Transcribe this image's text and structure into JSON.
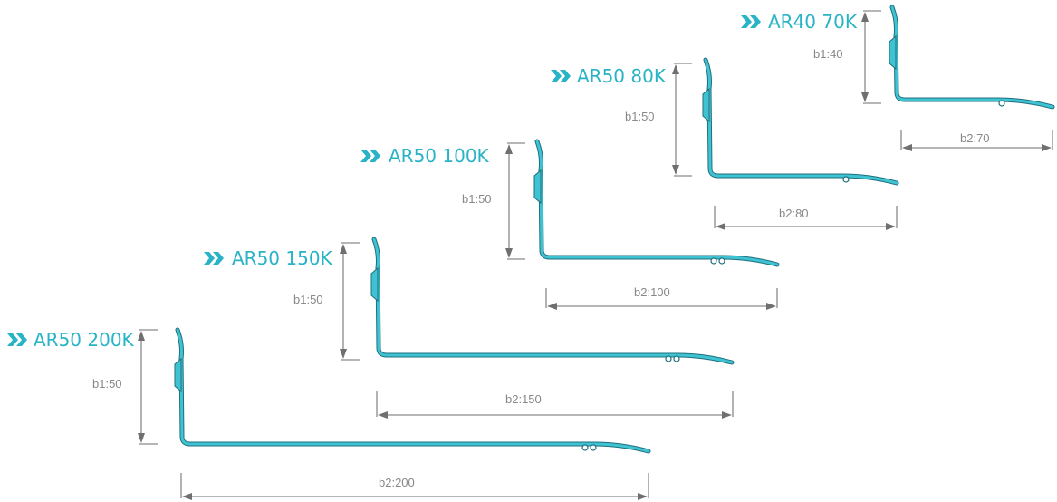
{
  "profiles": [
    {
      "id": "ar50-200k",
      "title": "AR50 200K",
      "b1_label": "b1:50",
      "b2_label": "b2:200",
      "b1": 50,
      "b2": 200
    },
    {
      "id": "ar50-150k",
      "title": "AR50 150K",
      "b1_label": "b1:50",
      "b2_label": "b2:150",
      "b1": 50,
      "b2": 150
    },
    {
      "id": "ar50-100k",
      "title": "AR50 100K",
      "b1_label": "b1:50",
      "b2_label": "b2:100",
      "b1": 50,
      "b2": 100
    },
    {
      "id": "ar50-80k",
      "title": "AR50 80K",
      "b1_label": "b1:50",
      "b2_label": "b2:80",
      "b1": 50,
      "b2": 80
    },
    {
      "id": "ar40-70k",
      "title": "AR40 70K",
      "b1_label": "b1:40",
      "b2_label": "b2:70",
      "b1": 40,
      "b2": 70
    }
  ],
  "colors": {
    "accent": "#29b3c6",
    "profile_fill": "#3fc3d3",
    "profile_edge": "#1f6f7d",
    "dimension": "#888888"
  },
  "icons": {
    "title_marker": "double-chevron-right-icon"
  }
}
